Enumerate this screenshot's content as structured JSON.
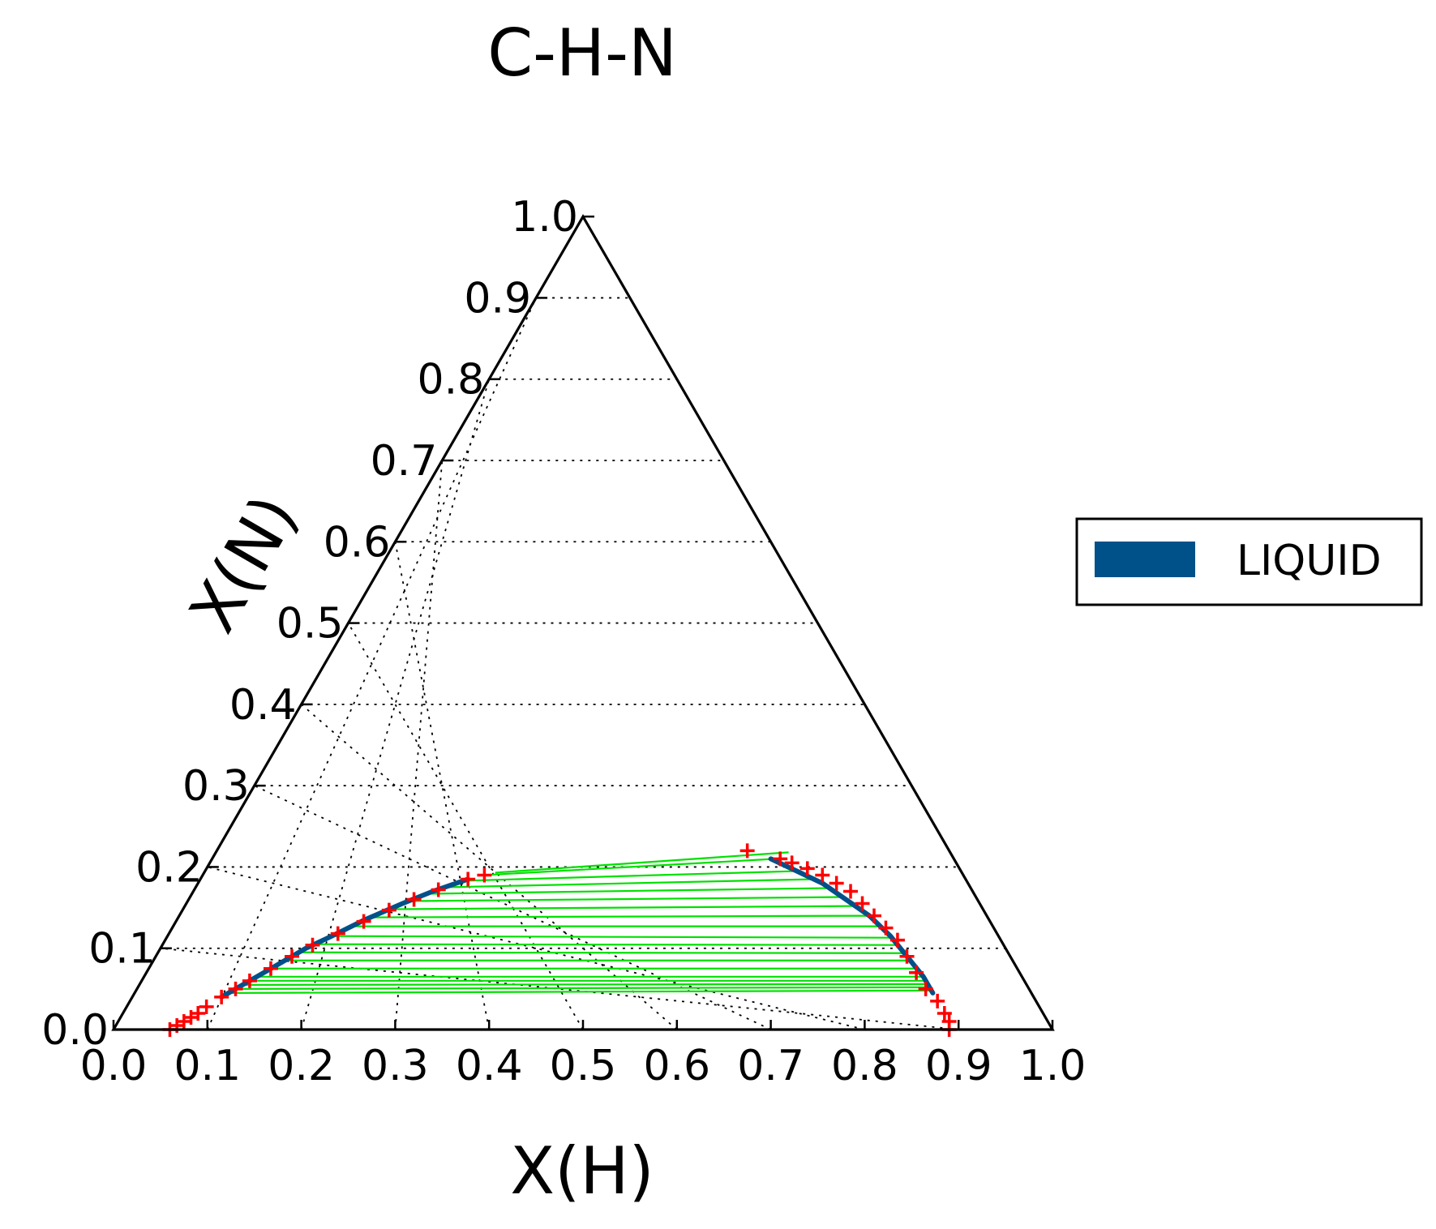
{
  "chart_data": {
    "type": "scatter",
    "subtype": "ternary",
    "title": "C-H-N",
    "xlabel": "X(H)",
    "ylabel": "X(N)",
    "xlim": [
      0,
      1
    ],
    "ylim": [
      0,
      1
    ],
    "grid": true,
    "grid_style": "dotted",
    "legend_placement": "right",
    "x_ticks": [
      "0.0",
      "0.1",
      "0.2",
      "0.3",
      "0.4",
      "0.5",
      "0.6",
      "0.7",
      "0.8",
      "0.9",
      "1.0"
    ],
    "y_ticks": [
      "0.0",
      "0.1",
      "0.2",
      "0.3",
      "0.4",
      "0.5",
      "0.6",
      "0.7",
      "0.8",
      "0.9",
      "1.0"
    ],
    "series": [
      {
        "name": "LIQUID",
        "color": "#00508a",
        "marker": "line",
        "left_boundary": [
          [
            0.095,
            0.04
          ],
          [
            0.11,
            0.055
          ],
          [
            0.13,
            0.075
          ],
          [
            0.155,
            0.1
          ],
          [
            0.175,
            0.115
          ],
          [
            0.2,
            0.135
          ],
          [
            0.23,
            0.155
          ],
          [
            0.255,
            0.17
          ],
          [
            0.285,
            0.185
          ]
        ],
        "right_boundary": [
          [
            0.595,
            0.21
          ],
          [
            0.63,
            0.195
          ],
          [
            0.665,
            0.18
          ],
          [
            0.7,
            0.16
          ],
          [
            0.735,
            0.14
          ],
          [
            0.77,
            0.115
          ],
          [
            0.8,
            0.09
          ],
          [
            0.83,
            0.065
          ],
          [
            0.85,
            0.045
          ]
        ]
      }
    ],
    "tie_line_color": "#00e000",
    "tie_lines": [
      [
        [
          0.103,
          0.045
        ],
        [
          0.846,
          0.048
        ]
      ],
      [
        [
          0.106,
          0.05
        ],
        [
          0.842,
          0.052
        ]
      ],
      [
        [
          0.11,
          0.055
        ],
        [
          0.838,
          0.056
        ]
      ],
      [
        [
          0.115,
          0.06
        ],
        [
          0.834,
          0.06
        ]
      ],
      [
        [
          0.12,
          0.065
        ],
        [
          0.83,
          0.065
        ]
      ],
      [
        [
          0.13,
          0.075
        ],
        [
          0.818,
          0.075
        ]
      ],
      [
        [
          0.14,
          0.085
        ],
        [
          0.806,
          0.085
        ]
      ],
      [
        [
          0.15,
          0.095
        ],
        [
          0.794,
          0.094
        ]
      ],
      [
        [
          0.162,
          0.105
        ],
        [
          0.782,
          0.104
        ]
      ],
      [
        [
          0.175,
          0.115
        ],
        [
          0.77,
          0.113
        ]
      ],
      [
        [
          0.19,
          0.127
        ],
        [
          0.752,
          0.127
        ]
      ],
      [
        [
          0.205,
          0.138
        ],
        [
          0.735,
          0.14
        ]
      ],
      [
        [
          0.22,
          0.148
        ],
        [
          0.715,
          0.152
        ]
      ],
      [
        [
          0.235,
          0.158
        ],
        [
          0.695,
          0.163
        ]
      ],
      [
        [
          0.25,
          0.167
        ],
        [
          0.675,
          0.174
        ]
      ],
      [
        [
          0.265,
          0.175
        ],
        [
          0.655,
          0.185
        ]
      ],
      [
        [
          0.28,
          0.183
        ],
        [
          0.632,
          0.195
        ]
      ],
      [
        [
          0.3,
          0.19
        ],
        [
          0.6,
          0.21
        ]
      ],
      [
        [
          0.31,
          0.193
        ],
        [
          0.61,
          0.218
        ]
      ]
    ],
    "calculated_points_color": "#ff0000",
    "calculated_points_marker": "+",
    "calculated_points": [
      [
        0.06,
        0.0
      ],
      [
        0.065,
        0.005
      ],
      [
        0.07,
        0.01
      ],
      [
        0.075,
        0.015
      ],
      [
        0.08,
        0.02
      ],
      [
        0.085,
        0.028
      ],
      [
        0.095,
        0.04
      ],
      [
        0.105,
        0.05
      ],
      [
        0.115,
        0.06
      ],
      [
        0.13,
        0.075
      ],
      [
        0.145,
        0.09
      ],
      [
        0.16,
        0.104
      ],
      [
        0.18,
        0.118
      ],
      [
        0.2,
        0.133
      ],
      [
        0.22,
        0.147
      ],
      [
        0.24,
        0.16
      ],
      [
        0.26,
        0.172
      ],
      [
        0.285,
        0.185
      ],
      [
        0.3,
        0.19
      ],
      [
        0.565,
        0.22
      ],
      [
        0.605,
        0.21
      ],
      [
        0.62,
        0.205
      ],
      [
        0.64,
        0.198
      ],
      [
        0.66,
        0.19
      ],
      [
        0.68,
        0.18
      ],
      [
        0.7,
        0.17
      ],
      [
        0.72,
        0.155
      ],
      [
        0.74,
        0.14
      ],
      [
        0.76,
        0.125
      ],
      [
        0.78,
        0.11
      ],
      [
        0.8,
        0.09
      ],
      [
        0.82,
        0.07
      ],
      [
        0.84,
        0.05
      ],
      [
        0.86,
        0.035
      ],
      [
        0.875,
        0.02
      ],
      [
        0.885,
        0.01
      ],
      [
        0.89,
        0.0
      ]
    ]
  }
}
